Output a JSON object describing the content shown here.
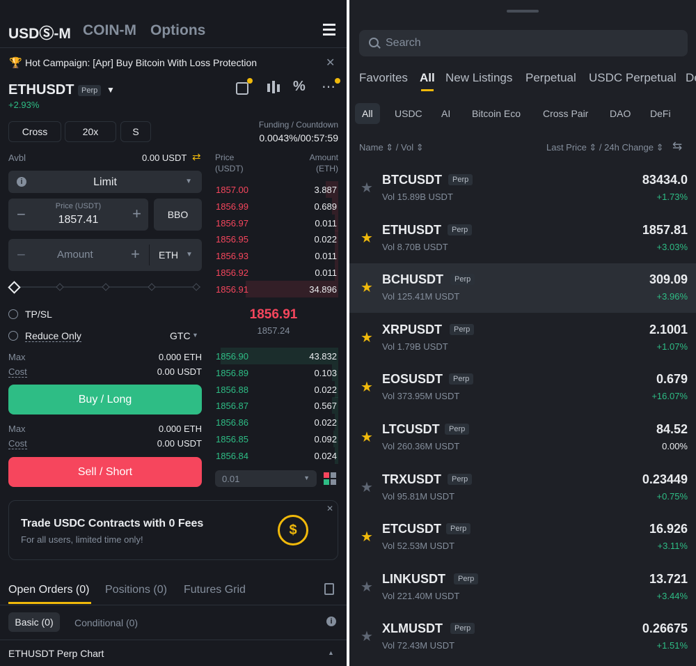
{
  "left": {
    "header": {
      "tabs": [
        "USDⓈ-M",
        "COIN-M",
        "Options"
      ]
    },
    "campaign": {
      "text": "Hot Campaign: [Apr] Buy Bitcoin With Loss Protection"
    },
    "symbol": {
      "name": "ETHUSDT",
      "badge": "Perp",
      "change": "+2.93%"
    },
    "controls": {
      "margin": "Cross",
      "leverage": "20x",
      "mode": "S"
    },
    "funding": {
      "label": "Funding / Countdown",
      "value": "0.0043%/00:57:59"
    },
    "avbl": {
      "label": "Avbl",
      "value": "0.00 USDT"
    },
    "order_type": "Limit",
    "price": {
      "label": "Price (USDT)",
      "value": "1857.41",
      "bbo": "BBO"
    },
    "amount": {
      "placeholder": "Amount",
      "unit": "ETH"
    },
    "options": {
      "tpsl": "TP/SL",
      "reduce": "Reduce Only",
      "tif": "GTC"
    },
    "buy": {
      "max_label": "Max",
      "max_value": "0.000 ETH",
      "cost_label": "Cost",
      "cost_value": "0.00 USDT",
      "button": "Buy / Long"
    },
    "sell": {
      "max_label": "Max",
      "max_value": "0.000 ETH",
      "cost_label": "Cost",
      "cost_value": "0.00 USDT",
      "button": "Sell / Short"
    },
    "orderbook": {
      "price_header": "Price\n(USDT)",
      "amount_header": "Amount\n(ETH)",
      "asks": [
        {
          "p": "1857.00",
          "a": "3.887",
          "depth": 0.1
        },
        {
          "p": "1856.99",
          "a": "0.689",
          "depth": 0.05
        },
        {
          "p": "1856.97",
          "a": "0.011",
          "depth": 0.03
        },
        {
          "p": "1856.95",
          "a": "0.022",
          "depth": 0.03
        },
        {
          "p": "1856.93",
          "a": "0.011",
          "depth": 0.03
        },
        {
          "p": "1856.92",
          "a": "0.011",
          "depth": 0.03
        },
        {
          "p": "1856.91",
          "a": "34.896",
          "depth": 0.75
        }
      ],
      "last": "1856.91",
      "mark": "1857.24",
      "bids": [
        {
          "p": "1856.90",
          "a": "43.832",
          "depth": 0.95
        },
        {
          "p": "1856.89",
          "a": "0.103",
          "depth": 0.05
        },
        {
          "p": "1856.88",
          "a": "0.022",
          "depth": 0.03
        },
        {
          "p": "1856.87",
          "a": "0.567",
          "depth": 0.05
        },
        {
          "p": "1856.86",
          "a": "0.022",
          "depth": 0.03
        },
        {
          "p": "1856.85",
          "a": "0.092",
          "depth": 0.04
        },
        {
          "p": "1856.84",
          "a": "0.024",
          "depth": 0.03
        }
      ],
      "precision": "0.01"
    },
    "promo": {
      "title": "Trade USDC Contracts with 0 Fees",
      "subtitle": "For all users, limited time only!"
    },
    "bottom_tabs": [
      "Open Orders (0)",
      "Positions (0)",
      "Futures Grid"
    ],
    "sub_tabs": [
      "Basic (0)",
      "Conditional (0)"
    ],
    "chart_label": "ETHUSDT Perp Chart",
    "colors": {
      "green": "#2ebd85",
      "red": "#f6465d",
      "yellow": "#f0b90b",
      "bg": "#181a20"
    }
  },
  "right": {
    "search_placeholder": "Search",
    "tabs": [
      "Favorites",
      "All",
      "New Listings",
      "Perpetual",
      "USDC Perpetual",
      "De"
    ],
    "chips": [
      "All",
      "USDC",
      "AI",
      "Bitcoin Eco",
      "Cross Pair",
      "DAO",
      "DeFi"
    ],
    "headers": {
      "name": "Name",
      "vol": "Vol",
      "last": "Last Price",
      "change": "24h Change"
    },
    "markets": [
      {
        "sym": "BTCUSDT",
        "vol": "Vol 15.89B USDT",
        "price": "83434.0",
        "chg": "+1.73%",
        "fav": false
      },
      {
        "sym": "ETHUSDT",
        "vol": "Vol 8.70B USDT",
        "price": "1857.81",
        "chg": "+3.03%",
        "fav": true
      },
      {
        "sym": "BCHUSDT",
        "vol": "Vol 125.41M USDT",
        "price": "309.09",
        "chg": "+3.96%",
        "fav": true
      },
      {
        "sym": "XRPUSDT",
        "vol": "Vol 1.79B USDT",
        "price": "2.1001",
        "chg": "+1.07%",
        "fav": true
      },
      {
        "sym": "EOSUSDT",
        "vol": "Vol 373.95M USDT",
        "price": "0.679",
        "chg": "+16.07%",
        "fav": true
      },
      {
        "sym": "LTCUSDT",
        "vol": "Vol 260.36M USDT",
        "price": "84.52",
        "chg": "0.00%",
        "fav": true
      },
      {
        "sym": "TRXUSDT",
        "vol": "Vol 95.81M USDT",
        "price": "0.23449",
        "chg": "+0.75%",
        "fav": false
      },
      {
        "sym": "ETCUSDT",
        "vol": "Vol 52.53M USDT",
        "price": "16.926",
        "chg": "+3.11%",
        "fav": true
      },
      {
        "sym": "LINKUSDT",
        "vol": "Vol 221.40M USDT",
        "price": "13.721",
        "chg": "+3.44%",
        "fav": false
      },
      {
        "sym": "XLMUSDT",
        "vol": "Vol 72.43M USDT",
        "price": "0.26675",
        "chg": "+1.51%",
        "fav": false
      }
    ],
    "badge": "Perp"
  }
}
